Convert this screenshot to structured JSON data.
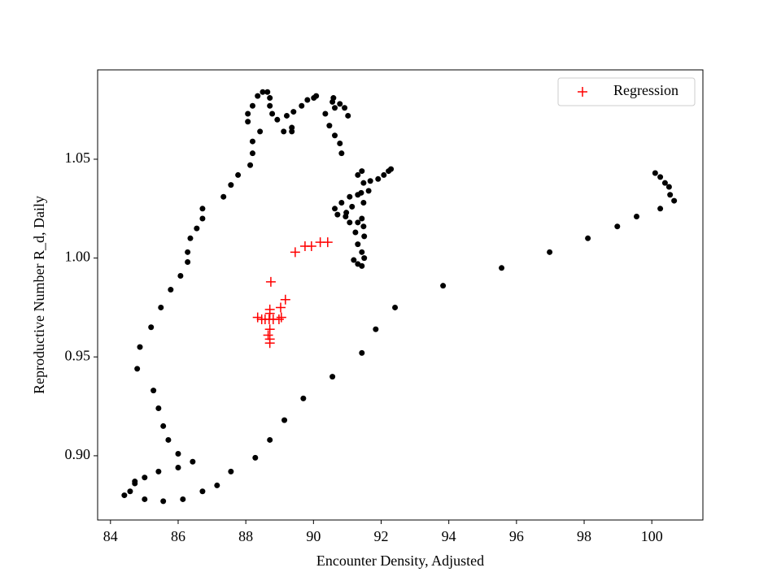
{
  "chart_data": {
    "type": "scatter",
    "x_label": "Encounter Density, Adjusted",
    "y_label": "Reproductive Number R_d, Daily",
    "xlim": [
      83.62,
      101.51
    ],
    "ylim": [
      0.8675,
      1.0952
    ],
    "xticks": [
      84,
      86,
      88,
      90,
      92,
      94,
      96,
      98,
      100
    ],
    "yticks": [
      {
        "value": 0.9,
        "label": "0.90"
      },
      {
        "value": 0.95,
        "label": "0.95"
      },
      {
        "value": 1.0,
        "label": "1.00"
      },
      {
        "value": 1.05,
        "label": "1.05"
      }
    ],
    "legend": "upper right",
    "series": [
      {
        "color": "#000000",
        "marker": "dot",
        "x": [
          84.41,
          84.58,
          84.72,
          84.72,
          85.01,
          85.01,
          85.42,
          85.56,
          86.14,
          86.72,
          87.15,
          87.56,
          88.28,
          88.71,
          89.14,
          89.7,
          90.56,
          91.43,
          91.84,
          92.41,
          93.83,
          95.56,
          96.98,
          98.11,
          98.98,
          99.55,
          100.25,
          100.66,
          100.54,
          100.51,
          100.39,
          100.25,
          100.1,
          86.43,
          86.0,
          86.0,
          85.71,
          85.56,
          85.42,
          85.27,
          84.79,
          84.87,
          85.2,
          85.49,
          85.78,
          86.07,
          86.28,
          86.28,
          86.36,
          86.55,
          86.72,
          86.72,
          87.34,
          87.56,
          87.77,
          88.13,
          88.2,
          88.2,
          88.42,
          88.06,
          88.06,
          88.2,
          88.35,
          88.5,
          88.64,
          88.71,
          88.71,
          88.78,
          88.93,
          89.21,
          89.36,
          89.36,
          89.12,
          89.41,
          89.65,
          89.82,
          90.01,
          90.08,
          90.56,
          90.63,
          90.35,
          90.47,
          90.63,
          90.78,
          90.83,
          91.02,
          90.92,
          90.78,
          90.59,
          91.31,
          91.43,
          91.48,
          91.68,
          91.91,
          92.08,
          92.22,
          92.29,
          91.63,
          91.31,
          91.07,
          90.83,
          90.63,
          90.71,
          90.95,
          91.07,
          91.31,
          91.43,
          91.48,
          91.5,
          91.31,
          91.43,
          91.19,
          91.31,
          91.43,
          91.41,
          91.48,
          91.14,
          90.97,
          91.24,
          91.5
        ],
        "values": [
          0.88,
          0.882,
          0.886,
          0.887,
          0.889,
          0.878,
          0.892,
          0.877,
          0.878,
          0.882,
          0.885,
          0.892,
          0.899,
          0.908,
          0.918,
          0.929,
          0.94,
          0.952,
          0.964,
          0.975,
          0.986,
          0.995,
          1.003,
          1.01,
          1.016,
          1.021,
          1.025,
          1.029,
          1.032,
          1.036,
          1.038,
          1.041,
          1.043,
          0.897,
          0.894,
          0.901,
          0.908,
          0.915,
          0.924,
          0.933,
          0.944,
          0.955,
          0.965,
          0.975,
          0.984,
          0.991,
          0.998,
          1.003,
          1.01,
          1.015,
          1.02,
          1.025,
          1.031,
          1.037,
          1.042,
          1.047,
          1.053,
          1.059,
          1.064,
          1.069,
          1.073,
          1.077,
          1.082,
          1.084,
          1.084,
          1.081,
          1.077,
          1.073,
          1.07,
          1.072,
          1.066,
          1.064,
          1.064,
          1.074,
          1.077,
          1.08,
          1.081,
          1.082,
          1.079,
          1.076,
          1.073,
          1.067,
          1.062,
          1.058,
          1.053,
          1.072,
          1.076,
          1.078,
          1.081,
          1.042,
          1.044,
          1.038,
          1.039,
          1.04,
          1.042,
          1.044,
          1.045,
          1.034,
          1.032,
          1.031,
          1.028,
          1.025,
          1.022,
          1.021,
          1.018,
          1.018,
          1.02,
          1.016,
          1.011,
          1.007,
          1.003,
          0.999,
          0.997,
          0.996,
          1.033,
          1.028,
          1.026,
          1.023,
          1.013,
          1.0
        ]
      },
      {
        "name": "Regression",
        "color": "#ff0000",
        "marker": "plus",
        "x": [
          88.74,
          88.71,
          88.71,
          88.69,
          88.35,
          88.47,
          88.57,
          88.81,
          88.98,
          89.05,
          89.03,
          89.17,
          88.66,
          88.71,
          88.71,
          89.46,
          89.75,
          89.94,
          90.2,
          90.42,
          88.71
        ],
        "values": [
          0.988,
          0.974,
          0.972,
          0.969,
          0.97,
          0.969,
          0.969,
          0.969,
          0.969,
          0.97,
          0.975,
          0.979,
          0.961,
          0.959,
          0.957,
          1.003,
          1.006,
          1.006,
          1.008,
          1.008,
          0.964
        ]
      }
    ]
  }
}
